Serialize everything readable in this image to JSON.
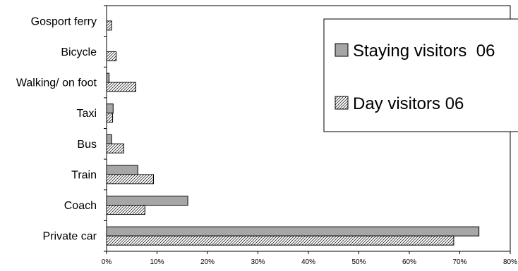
{
  "chart_data": {
    "type": "bar",
    "orientation": "horizontal",
    "categories": [
      "Gosport ferry",
      "Bicycle",
      "Walking/ on foot",
      "Taxi",
      "Bus",
      "Train",
      "Coach",
      "Private car"
    ],
    "series": [
      {
        "name": "Staying visitors  06",
        "values": [
          0,
          0,
          0.5,
          1.3,
          1.0,
          6.2,
          16.1,
          73.8
        ],
        "color": "#a6a6a6",
        "fill": "solid"
      },
      {
        "name": "Day visitors 06",
        "values": [
          1.0,
          1.9,
          5.8,
          1.2,
          3.4,
          9.3,
          7.6,
          68.8
        ],
        "color": "#ffffff",
        "fill": "diagonal-hatch"
      }
    ],
    "x_ticks": [
      "0%",
      "10%",
      "20%",
      "30%",
      "40%",
      "50%",
      "60%",
      "70%",
      "80%"
    ],
    "xlim": [
      0,
      80
    ],
    "grid": "vertical",
    "legend_position": "top-right"
  }
}
